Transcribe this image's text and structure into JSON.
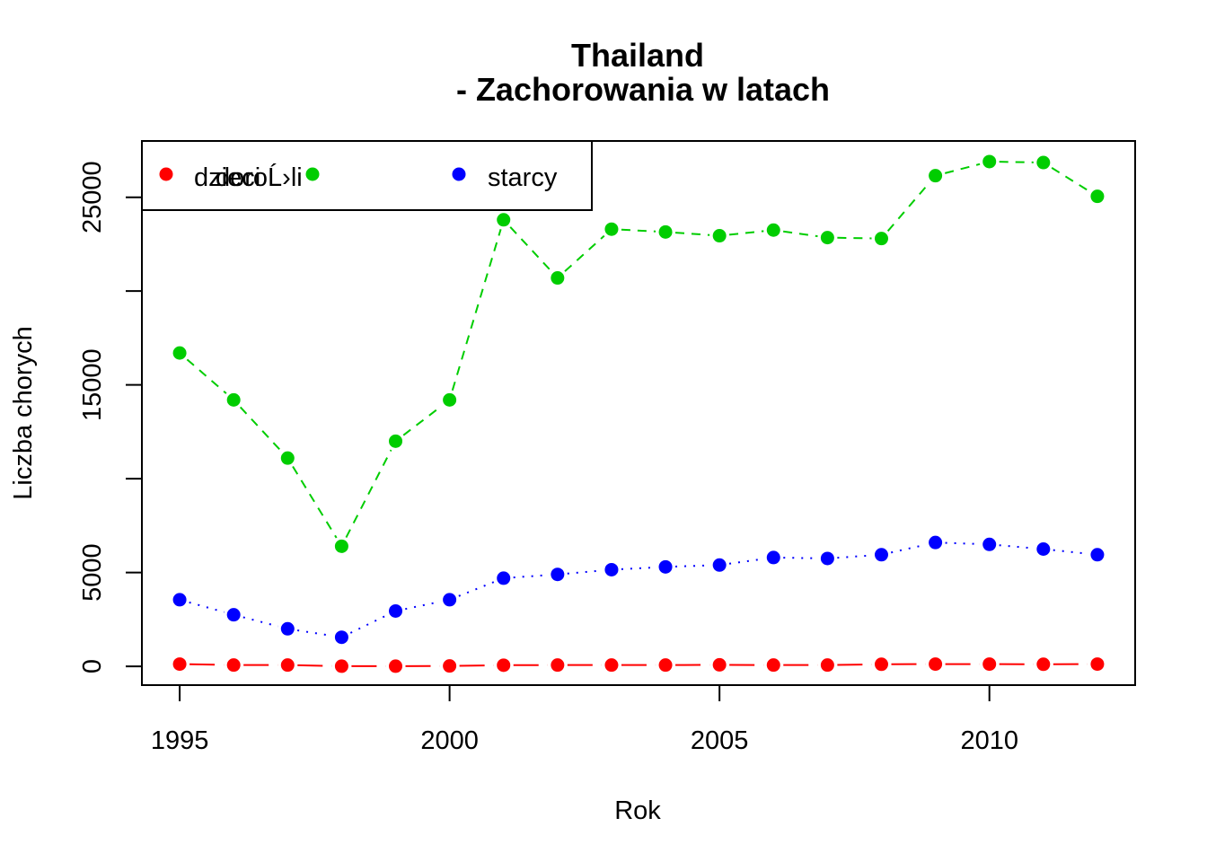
{
  "chart_data": {
    "type": "line",
    "title": [
      "Thailand",
      "- Zachorowania w latach"
    ],
    "xlabel": "Rok",
    "ylabel": "Liczba chorych",
    "xlim": [
      1994.3,
      2012.7
    ],
    "ylim": [
      -1000,
      28000
    ],
    "x_ticks": [
      1995,
      2000,
      2005,
      2010
    ],
    "y_ticks": [
      0,
      5000,
      15000,
      25000
    ],
    "y_minor_ticks": [
      10000,
      20000
    ],
    "grid": false,
    "legend_position": "top-left",
    "x": [
      1995,
      1996,
      1997,
      1998,
      1999,
      2000,
      2001,
      2002,
      2003,
      2004,
      2005,
      2006,
      2007,
      2008,
      2009,
      2010,
      2011,
      2012
    ],
    "series": [
      {
        "name": "dzieci",
        "color": "#ff0000",
        "dash": "long",
        "values": [
          120,
          70,
          70,
          10,
          10,
          20,
          60,
          70,
          70,
          70,
          80,
          70,
          70,
          110,
          120,
          120,
          110,
          120
        ]
      },
      {
        "name": "doroĹ›li",
        "color": "#00cd00",
        "dash": "dashed",
        "values": [
          16700,
          14200,
          11100,
          6400,
          12000,
          14200,
          23800,
          20700,
          23300,
          23150,
          22950,
          23250,
          22850,
          22800,
          26150,
          26900,
          26850,
          25050
        ]
      },
      {
        "name": "starcy",
        "color": "#0000ff",
        "dash": "dotted",
        "values": [
          3550,
          2750,
          2000,
          1550,
          2950,
          3550,
          4700,
          4900,
          5150,
          5300,
          5400,
          5800,
          5750,
          5950,
          6600,
          6500,
          6250,
          5950
        ]
      }
    ]
  }
}
